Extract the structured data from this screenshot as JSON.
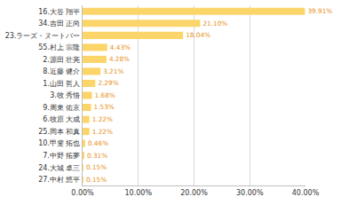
{
  "chart_data": {
    "type": "bar",
    "orientation": "horizontal",
    "categories": [
      "16.大谷 翔平",
      "34.吉田 正尚",
      "23.ラーズ・ヌートバー",
      "55.村上 宗隆",
      "2.源田 壮亮",
      "8.近藤 健介",
      "1.山田 哲人",
      "3.牧 秀悟",
      "9.周東 佑京",
      "6.牧原 大成",
      "25.岡本 和真",
      "10.甲斐 拓也",
      "7.中野 拓夢",
      "24.大城 卓三",
      "27.中村 悠平"
    ],
    "values": [
      39.91,
      21.1,
      18.04,
      4.43,
      4.28,
      3.21,
      2.29,
      1.68,
      1.53,
      1.22,
      1.22,
      0.46,
      0.31,
      0.15,
      0.15
    ],
    "value_labels": [
      "39.91%",
      "21.10%",
      "18.04%",
      "4.43%",
      "4.28%",
      "3.21%",
      "2.29%",
      "1.68%",
      "1.53%",
      "1.22%",
      "1.22%",
      "0.46%",
      "0.31%",
      "0.15%",
      "0.15%"
    ],
    "data_labels": true,
    "color": "#fcd56a",
    "xlim": [
      0,
      40
    ],
    "xticks": [
      {
        "value": 0,
        "label": "0.00%"
      },
      {
        "value": 10,
        "label": "10.00%"
      },
      {
        "value": 20,
        "label": "20.00%"
      },
      {
        "value": 30,
        "label": "30.00%"
      },
      {
        "value": 40,
        "label": "40.00%"
      }
    ],
    "grid": true
  }
}
